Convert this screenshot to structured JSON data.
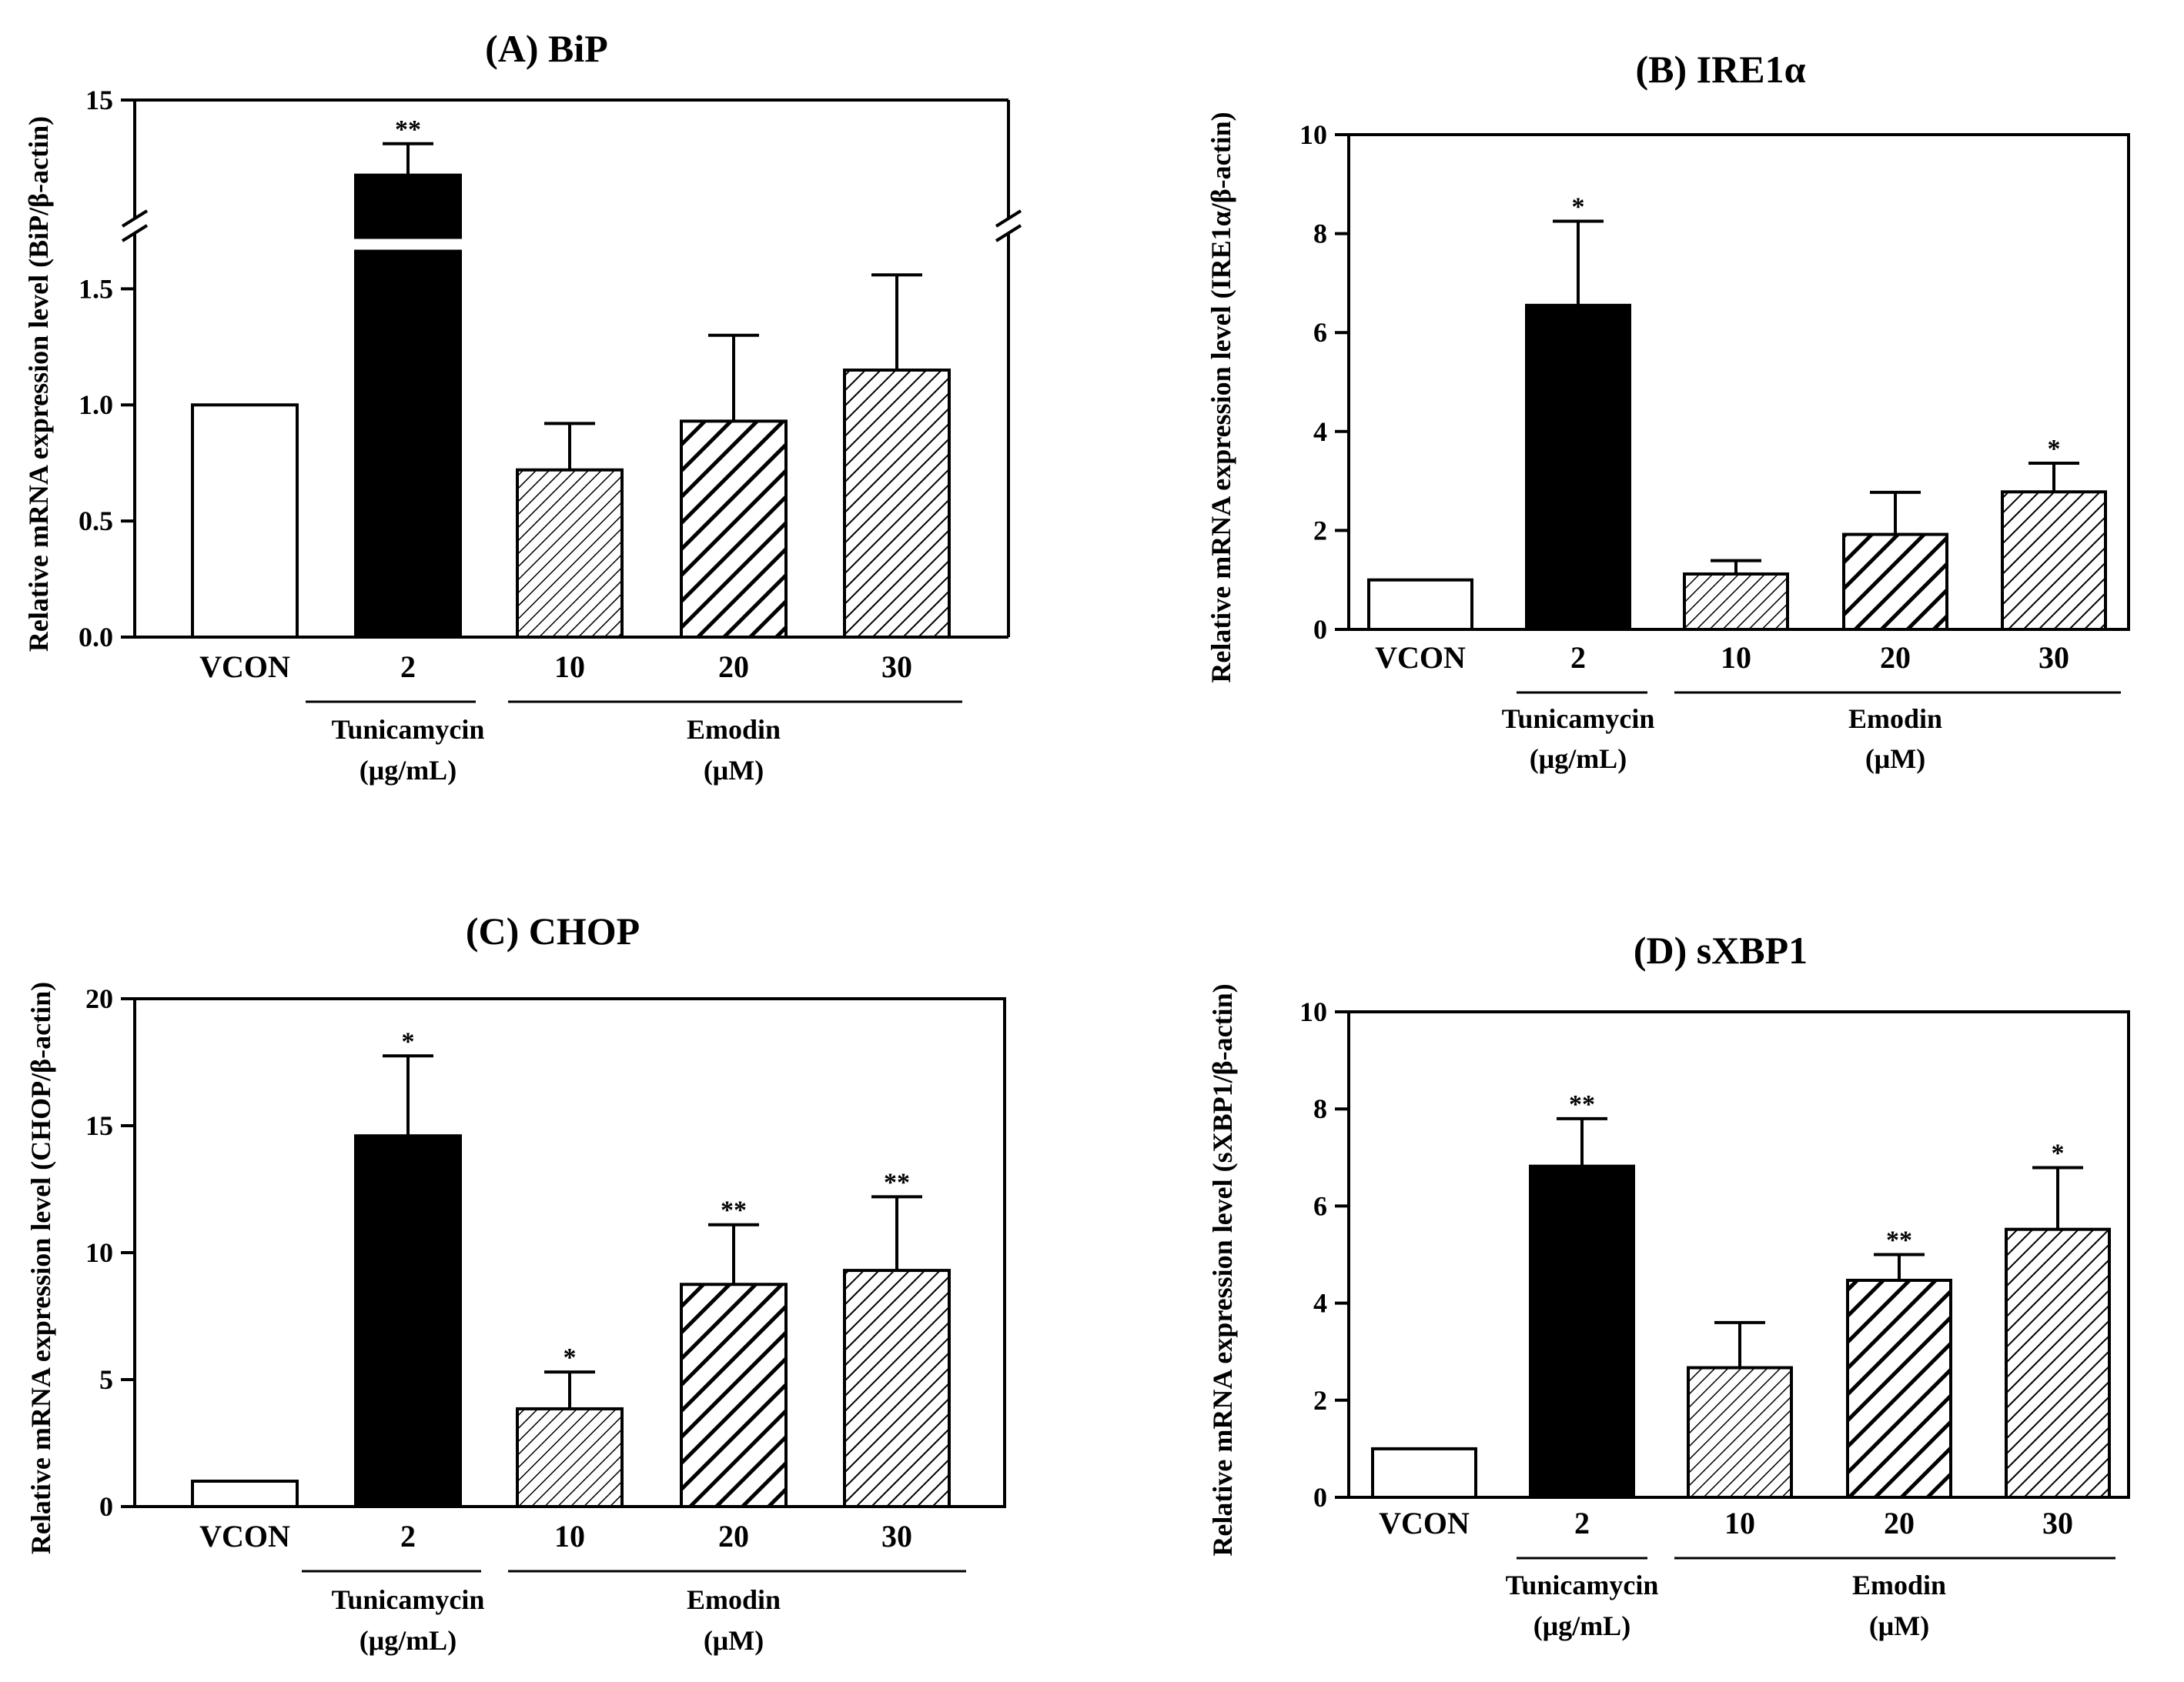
{
  "figure": {
    "colors": {
      "axis": "#000000",
      "tunicamycin_fill": "#000000",
      "vcon_fill": "#ffffff",
      "background": "#ffffff"
    },
    "group_labels": {
      "tunicamycin": [
        "Tunicamycin",
        "(μg/mL)"
      ],
      "emodin": [
        "Emodin",
        "(μM)"
      ]
    }
  },
  "chart_data": [
    {
      "id": "A",
      "type": "bar",
      "title": "(A) BiP",
      "ylabel": "Relative mRNA expression level (BiP/β-actin)",
      "categories": [
        "VCON",
        "2",
        "10",
        "20",
        "30"
      ],
      "values": [
        1.0,
        9.5,
        0.72,
        0.93,
        1.15
      ],
      "errors": [
        0,
        2.3,
        0.2,
        0.37,
        0.41
      ],
      "significance": [
        "",
        "**",
        "",
        "",
        ""
      ],
      "fills": [
        "open",
        "solid",
        "hatch-fine",
        "hatch-bold",
        "hatch-medium"
      ],
      "ylim": [
        0,
        15
      ],
      "axis_break": {
        "lower_max": 1.7,
        "upper_min": 7,
        "upper_max": 15
      },
      "yticks": [
        0,
        0.5,
        1.0,
        1.5,
        15
      ],
      "ytick_labels": [
        "0.0",
        "0.5",
        "1.0",
        "1.5",
        "15"
      ]
    },
    {
      "id": "B",
      "type": "bar",
      "title": "(B) IRE1α",
      "ylabel": "Relative mRNA expression level (IRE1α/β-actin)",
      "categories": [
        "VCON",
        "2",
        "10",
        "20",
        "30"
      ],
      "values": [
        1.0,
        6.55,
        1.12,
        1.92,
        2.78
      ],
      "errors": [
        0,
        1.7,
        0.27,
        0.85,
        0.58
      ],
      "significance": [
        "",
        "*",
        "",
        "",
        "*"
      ],
      "fills": [
        "open",
        "solid",
        "hatch-fine",
        "hatch-bold",
        "hatch-medium"
      ],
      "ylim": [
        0,
        10
      ],
      "yticks": [
        0,
        2,
        4,
        6,
        8,
        10
      ],
      "ytick_labels": [
        "0",
        "2",
        "4",
        "6",
        "8",
        "10"
      ]
    },
    {
      "id": "C",
      "type": "bar",
      "title": "(C) CHOP",
      "ylabel": "Relative mRNA expression level (CHOP/β-actin)",
      "categories": [
        "VCON",
        "2",
        "10",
        "20",
        "30"
      ],
      "values": [
        1.0,
        14.6,
        3.85,
        8.75,
        9.3
      ],
      "errors": [
        0,
        3.15,
        1.45,
        2.35,
        2.9
      ],
      "significance": [
        "",
        "*",
        "*",
        "**",
        "**"
      ],
      "fills": [
        "open",
        "solid",
        "hatch-fine",
        "hatch-bold",
        "hatch-medium"
      ],
      "ylim": [
        0,
        20
      ],
      "yticks": [
        0,
        5,
        10,
        15,
        20
      ],
      "ytick_labels": [
        "0",
        "5",
        "10",
        "15",
        "20"
      ]
    },
    {
      "id": "D",
      "type": "bar",
      "title": "(D) sXBP1",
      "ylabel": "Relative mRNA expression level (sXBP1/β-actin)",
      "categories": [
        "VCON",
        "2",
        "10",
        "20",
        "30"
      ],
      "values": [
        1.0,
        6.82,
        2.67,
        4.47,
        5.52
      ],
      "errors": [
        0,
        0.98,
        0.93,
        0.53,
        1.27
      ],
      "significance": [
        "",
        "**",
        "",
        "**",
        "*"
      ],
      "fills": [
        "open",
        "solid",
        "hatch-fine",
        "hatch-bold",
        "hatch-medium"
      ],
      "ylim": [
        0,
        10
      ],
      "yticks": [
        0,
        2,
        4,
        6,
        8,
        10
      ],
      "ytick_labels": [
        "0",
        "2",
        "4",
        "6",
        "8",
        "10"
      ]
    }
  ]
}
